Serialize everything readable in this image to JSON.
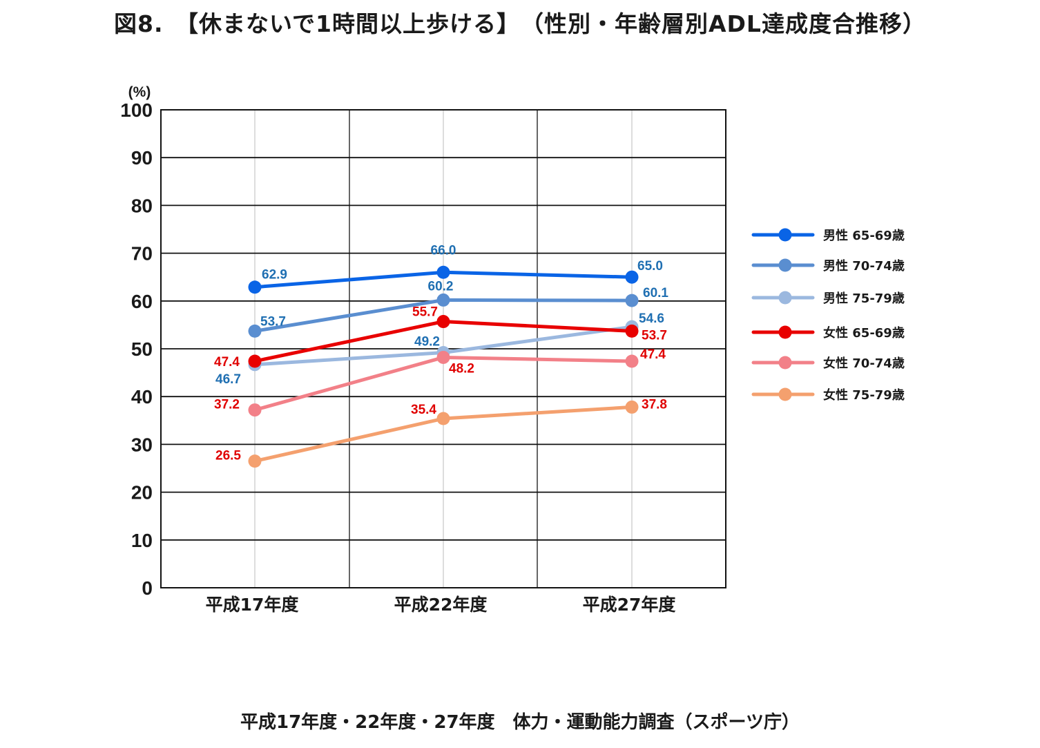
{
  "title": "図8.　【休まないで1時間以上歩ける】　（性別・年齢層別ADL達成度合推移）",
  "source": "平成17年度・22年度・27年度　体力・運動能力調査（スポーツ庁）",
  "chart_data": {
    "type": "line",
    "title": "図8.　【休まないで1時間以上歩ける】　（性別・年齢層別ADL達成度合推移）",
    "ylabel": "(%)",
    "xlabel": "",
    "ylim": [
      0,
      100
    ],
    "yticks": [
      0,
      10,
      20,
      30,
      40,
      50,
      60,
      70,
      80,
      90,
      100
    ],
    "categories": [
      "平成17年度",
      "平成22年度",
      "平成27年度"
    ],
    "grid": true,
    "legend_position": "right",
    "label_colors": {
      "male": "#1f6fb2",
      "female": "#e00000"
    },
    "series": [
      {
        "name": "男性 65-69歳",
        "values": [
          62.9,
          66.0,
          65.0
        ],
        "color": "#0a64e6"
      },
      {
        "name": "男性 70-74歳",
        "values": [
          53.7,
          60.2,
          60.1
        ],
        "color": "#5a8ed0"
      },
      {
        "name": "男性 75-79歳",
        "values": [
          46.7,
          49.2,
          54.6
        ],
        "color": "#9bb8df"
      },
      {
        "name": "女性 65-69歳",
        "values": [
          47.4,
          55.7,
          53.7
        ],
        "color": "#e80000"
      },
      {
        "name": "女性 70-74歳",
        "values": [
          37.2,
          48.2,
          47.4
        ],
        "color": "#f28088"
      },
      {
        "name": "女性 75-79歳",
        "values": [
          26.5,
          35.4,
          37.8
        ],
        "color": "#f4a06e"
      }
    ]
  }
}
